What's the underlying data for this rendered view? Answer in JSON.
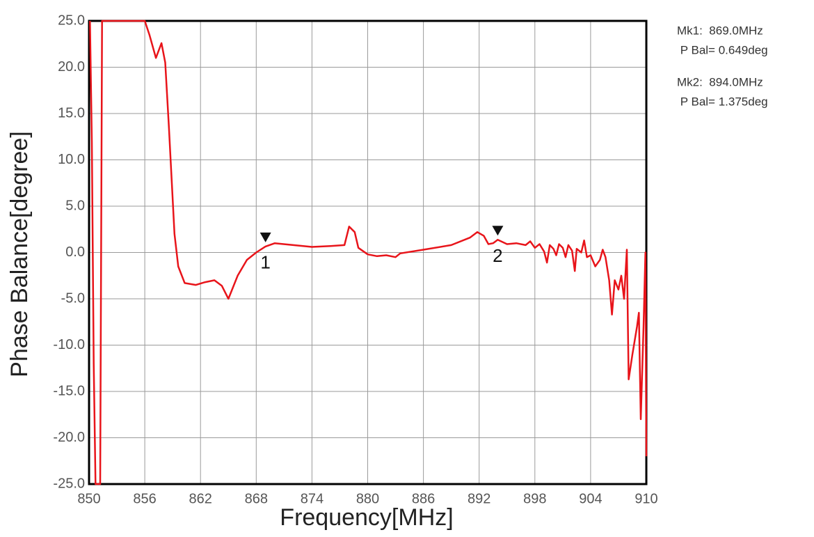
{
  "chart_data": {
    "type": "line",
    "xlabel": "Frequency[MHz]",
    "ylabel": "Phase Balance[degree]",
    "color": "#e8141a",
    "grid": true,
    "xlim": [
      850,
      910
    ],
    "xticks": [
      850,
      856,
      862,
      868,
      874,
      880,
      886,
      892,
      898,
      904,
      910
    ],
    "ylim": [
      -25,
      25
    ],
    "yticks": [
      {
        "value": 25,
        "label": "25.0"
      },
      {
        "value": 20,
        "label": "20.0"
      },
      {
        "value": 15,
        "label": "15.0"
      },
      {
        "value": 10,
        "label": "10.0"
      },
      {
        "value": 5,
        "label": "5.0"
      },
      {
        "value": 0,
        "label": "0.0"
      },
      {
        "value": -5,
        "label": "-5.0"
      },
      {
        "value": -10,
        "label": "-10.0"
      },
      {
        "value": -15,
        "label": "-15.0"
      },
      {
        "value": -20,
        "label": "-20.0"
      },
      {
        "value": -25,
        "label": "-25.0"
      }
    ],
    "x": [
      850.1,
      850.3,
      850.5,
      850.7,
      851.2,
      851.4,
      856.0,
      856.5,
      857.2,
      857.8,
      858.2,
      858.6,
      859.2,
      859.6,
      860.3,
      861.5,
      862.5,
      863.5,
      864.3,
      865.0,
      866.0,
      867.0,
      868.0,
      869.0,
      870.0,
      872.0,
      874.0,
      876.0,
      877.5,
      878.0,
      878.6,
      879.0,
      880.0,
      881.0,
      882.0,
      883.0,
      883.5,
      886.0,
      889.0,
      891.0,
      891.8,
      892.5,
      893.0,
      893.5,
      894.0,
      895.0,
      896.0,
      897.0,
      897.5,
      898.0,
      898.5,
      899.0,
      899.3,
      899.6,
      900.0,
      900.3,
      900.6,
      901.0,
      901.3,
      901.6,
      902.0,
      902.3,
      902.5,
      903.0,
      903.3,
      903.6,
      904.0,
      904.5,
      905.0,
      905.3,
      905.6,
      906.0,
      906.3,
      906.6,
      907.0,
      907.3,
      907.6,
      907.9,
      908.1,
      908.5,
      909.0,
      909.2,
      909.4,
      909.7,
      909.9,
      910.0
    ],
    "values": [
      25,
      12,
      -12,
      -25,
      -25,
      25,
      25,
      23.5,
      21,
      22.6,
      20.5,
      13.5,
      2,
      -1.5,
      -3.3,
      -3.5,
      -3.2,
      -3.0,
      -3.6,
      -5.0,
      -2.5,
      -0.8,
      0.0,
      0.649,
      1.0,
      0.8,
      0.6,
      0.7,
      0.8,
      2.8,
      2.2,
      0.5,
      -0.2,
      -0.4,
      -0.3,
      -0.5,
      -0.1,
      0.3,
      0.8,
      1.6,
      2.2,
      1.8,
      0.9,
      1.0,
      1.375,
      0.9,
      1.0,
      0.8,
      1.2,
      0.5,
      0.9,
      0.1,
      -1.1,
      0.8,
      0.4,
      -0.3,
      0.9,
      0.5,
      -0.5,
      0.8,
      0.2,
      -2.0,
      0.4,
      0.0,
      1.3,
      -0.5,
      -0.3,
      -1.5,
      -0.8,
      0.3,
      -0.5,
      -3.0,
      -6.7,
      -3.0,
      -4.0,
      -2.5,
      -5.0,
      0.3,
      -13.7,
      -11,
      -8,
      -6.5,
      -18,
      -8,
      0,
      -22
    ],
    "markers": [
      {
        "label": "1",
        "x": 869.0,
        "y": 0.649,
        "readout": [
          "Mk1:  869.0MHz",
          " P Bal= 0.649deg"
        ]
      },
      {
        "label": "2",
        "x": 894.0,
        "y": 1.375,
        "readout": [
          "Mk2:  894.0MHz",
          " P Bal= 1.375deg"
        ]
      }
    ]
  }
}
